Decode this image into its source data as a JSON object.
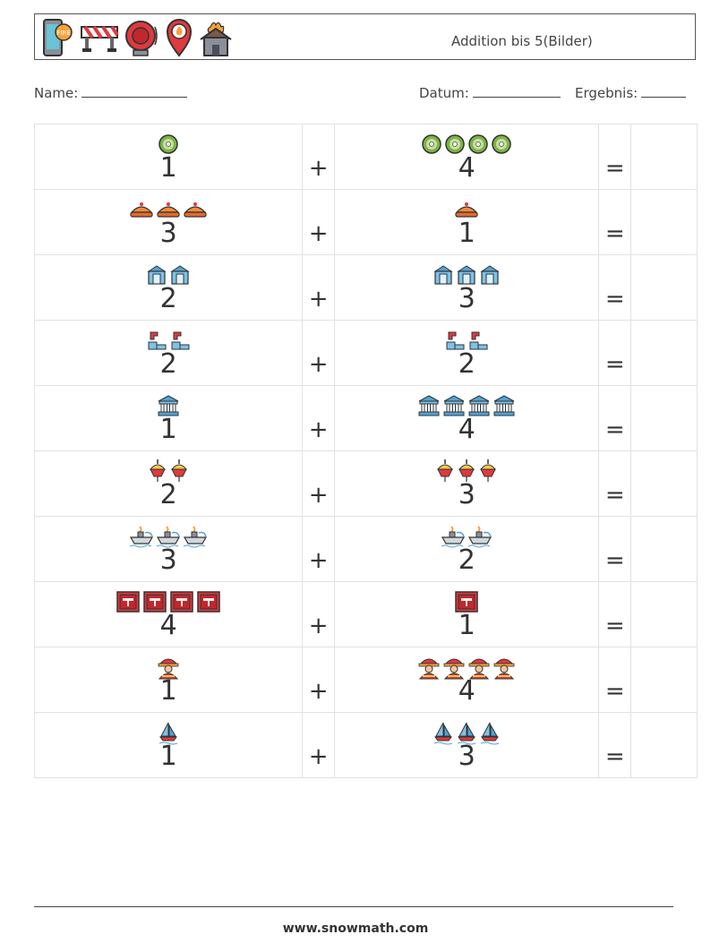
{
  "header": {
    "icons": [
      "phone-fire-icon",
      "road-barrier-icon",
      "fire-alarm-icon",
      "fire-location-pin-icon",
      "burning-house-icon"
    ],
    "title": "Addition bis 5(Bilder)"
  },
  "meta": {
    "name_label": "Name:",
    "date_label": "Datum:",
    "result_label": "Ergebnis:"
  },
  "rows": [
    {
      "left": 1,
      "left_icon": "kiwi",
      "right": 4,
      "right_icon": "kiwi",
      "plus": "+",
      "equals": "="
    },
    {
      "left": 3,
      "left_icon": "pie",
      "right": 1,
      "right_icon": "pie",
      "plus": "+",
      "equals": "="
    },
    {
      "left": 2,
      "left_icon": "fire-station",
      "right": 3,
      "right_icon": "fire-station",
      "plus": "+",
      "equals": "="
    },
    {
      "left": 2,
      "left_icon": "pipe",
      "right": 2,
      "right_icon": "pipe",
      "plus": "+",
      "equals": "="
    },
    {
      "left": 1,
      "left_icon": "building-columns",
      "right": 4,
      "right_icon": "building-columns",
      "plus": "+",
      "equals": "="
    },
    {
      "left": 2,
      "left_icon": "buoy",
      "right": 3,
      "right_icon": "buoy",
      "plus": "+",
      "equals": "="
    },
    {
      "left": 3,
      "left_icon": "fire-boat",
      "right": 2,
      "right_icon": "fire-boat",
      "plus": "+",
      "equals": "="
    },
    {
      "left": 4,
      "left_icon": "hydrant-box",
      "right": 1,
      "right_icon": "hydrant-box",
      "plus": "+",
      "equals": "="
    },
    {
      "left": 1,
      "left_icon": "firefighter",
      "right": 4,
      "right_icon": "firefighter",
      "plus": "+",
      "equals": "="
    },
    {
      "left": 1,
      "left_icon": "sailboat",
      "right": 3,
      "right_icon": "sailboat",
      "plus": "+",
      "equals": "="
    }
  ],
  "footer": {
    "url": "www.snowmath.com"
  }
}
